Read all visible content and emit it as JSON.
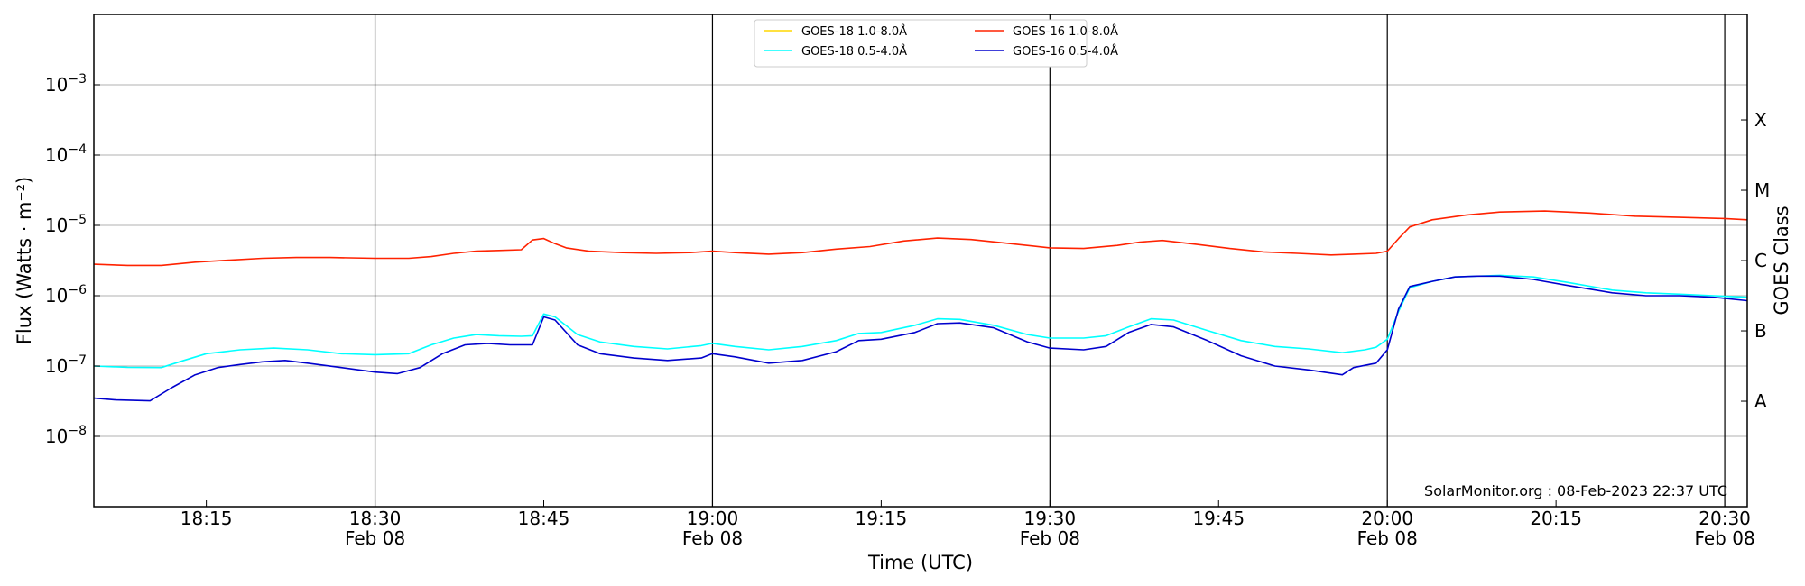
{
  "chart_data": {
    "type": "line",
    "xlabel": "Time (UTC)",
    "ylabel": "Flux (Watts · m⁻²)",
    "y2label": "GOES Class",
    "yscale": "log",
    "ylim": [
      1e-09,
      0.01
    ],
    "xlim": [
      "18:05",
      "20:32"
    ],
    "grid": "horizontal at decades",
    "vertical_lines": [
      "18:30",
      "19:00",
      "19:30",
      "20:00",
      "20:30"
    ],
    "legend_position": "top-center",
    "x_ticks": [
      {
        "time": "18:15",
        "label": "18:15",
        "date": ""
      },
      {
        "time": "18:30",
        "label": "18:30",
        "date": "Feb 08"
      },
      {
        "time": "18:45",
        "label": "18:45",
        "date": ""
      },
      {
        "time": "19:00",
        "label": "19:00",
        "date": "Feb 08"
      },
      {
        "time": "19:15",
        "label": "19:15",
        "date": ""
      },
      {
        "time": "19:30",
        "label": "19:30",
        "date": "Feb 08"
      },
      {
        "time": "19:45",
        "label": "19:45",
        "date": ""
      },
      {
        "time": "20:00",
        "label": "20:00",
        "date": "Feb 08"
      },
      {
        "time": "20:15",
        "label": "20:15",
        "date": ""
      },
      {
        "time": "20:30",
        "label": "20:30",
        "date": "Feb 08"
      }
    ],
    "y_ticks": [
      {
        "value": 1e-08,
        "base": "10",
        "exp": "−8"
      },
      {
        "value": 1e-07,
        "base": "10",
        "exp": "−7"
      },
      {
        "value": 1e-06,
        "base": "10",
        "exp": "−6"
      },
      {
        "value": 1e-05,
        "base": "10",
        "exp": "−5"
      },
      {
        "value": 0.0001,
        "base": "10",
        "exp": "−4"
      },
      {
        "value": 0.001,
        "base": "10",
        "exp": "−3"
      }
    ],
    "goes_classes": [
      {
        "label": "A",
        "value": 3.16e-08
      },
      {
        "label": "B",
        "value": 3.16e-07
      },
      {
        "label": "C",
        "value": 3.16e-06
      },
      {
        "label": "M",
        "value": 3.16e-05
      },
      {
        "label": "X",
        "value": 0.000316
      }
    ],
    "credit": "SolarMonitor.org : 08-Feb-2023 22:37 UTC",
    "series": [
      {
        "name": "GOES-18 1.0-8.0Å",
        "color": "#ffd700",
        "x": [],
        "values": []
      },
      {
        "name": "GOES-18 0.5-4.0Å",
        "color": "#00ffff",
        "x": [
          "18:05",
          "18:08",
          "18:11",
          "18:13",
          "18:15",
          "18:18",
          "18:21",
          "18:24",
          "18:27",
          "18:30",
          "18:33",
          "18:35",
          "18:37",
          "18:39",
          "18:41",
          "18:43",
          "18:44",
          "18:45",
          "18:46",
          "18:48",
          "18:50",
          "18:53",
          "18:56",
          "18:59",
          "19:00",
          "19:02",
          "19:05",
          "19:08",
          "19:11",
          "19:13",
          "19:15",
          "19:18",
          "19:20",
          "19:22",
          "19:25",
          "19:28",
          "19:30",
          "19:33",
          "19:35",
          "19:37",
          "19:39",
          "19:41",
          "19:44",
          "19:47",
          "19:50",
          "19:53",
          "19:56",
          "19:58",
          "19:59",
          "20:00",
          "20:01",
          "20:02",
          "20:04",
          "20:06",
          "20:08",
          "20:10",
          "20:13",
          "20:16",
          "20:20",
          "20:23",
          "20:26",
          "20:29",
          "20:32"
        ],
        "values": [
          1e-07,
          9.6e-08,
          9.5e-08,
          1.2e-07,
          1.5e-07,
          1.7e-07,
          1.8e-07,
          1.7e-07,
          1.5e-07,
          1.45e-07,
          1.5e-07,
          2e-07,
          2.5e-07,
          2.8e-07,
          2.7e-07,
          2.65e-07,
          2.7e-07,
          5.5e-07,
          5e-07,
          2.8e-07,
          2.2e-07,
          1.9e-07,
          1.75e-07,
          1.95e-07,
          2.1e-07,
          1.9e-07,
          1.7e-07,
          1.9e-07,
          2.3e-07,
          2.9e-07,
          3e-07,
          3.8e-07,
          4.7e-07,
          4.6e-07,
          3.8e-07,
          2.8e-07,
          2.5e-07,
          2.5e-07,
          2.7e-07,
          3.6e-07,
          4.7e-07,
          4.5e-07,
          3.2e-07,
          2.3e-07,
          1.9e-07,
          1.75e-07,
          1.55e-07,
          1.7e-07,
          1.85e-07,
          2.4e-07,
          6e-07,
          1.3e-06,
          1.6e-06,
          1.85e-06,
          1.9e-06,
          1.95e-06,
          1.85e-06,
          1.55e-06,
          1.2e-06,
          1.1e-06,
          1.05e-06,
          1e-06,
          9.5e-07
        ]
      },
      {
        "name": "GOES-16 1.0-8.0Å",
        "color": "#ff2200",
        "x": [
          "18:05",
          "18:08",
          "18:11",
          "18:14",
          "18:17",
          "18:20",
          "18:23",
          "18:26",
          "18:30",
          "18:33",
          "18:35",
          "18:37",
          "18:39",
          "18:41",
          "18:43",
          "18:44",
          "18:45",
          "18:46",
          "18:47",
          "18:49",
          "18:52",
          "18:55",
          "18:58",
          "19:00",
          "19:02",
          "19:05",
          "19:08",
          "19:11",
          "19:14",
          "19:17",
          "19:20",
          "19:23",
          "19:26",
          "19:30",
          "19:33",
          "19:36",
          "19:38",
          "19:40",
          "19:43",
          "19:46",
          "19:49",
          "19:52",
          "19:55",
          "19:57",
          "19:59",
          "20:00",
          "20:01",
          "20:02",
          "20:04",
          "20:07",
          "20:10",
          "20:14",
          "20:18",
          "20:22",
          "20:26",
          "20:30",
          "20:32"
        ],
        "values": [
          2.8e-06,
          2.7e-06,
          2.7e-06,
          3e-06,
          3.2e-06,
          3.4e-06,
          3.5e-06,
          3.5e-06,
          3.4e-06,
          3.4e-06,
          3.6e-06,
          4e-06,
          4.3e-06,
          4.4e-06,
          4.5e-06,
          6.2e-06,
          6.5e-06,
          5.5e-06,
          4.8e-06,
          4.3e-06,
          4.1e-06,
          4e-06,
          4.1e-06,
          4.3e-06,
          4.1e-06,
          3.9e-06,
          4.1e-06,
          4.6e-06,
          5e-06,
          6e-06,
          6.6e-06,
          6.3e-06,
          5.6e-06,
          4.8e-06,
          4.7e-06,
          5.2e-06,
          5.8e-06,
          6.1e-06,
          5.4e-06,
          4.7e-06,
          4.2e-06,
          4e-06,
          3.8e-06,
          3.9e-06,
          4e-06,
          4.3e-06,
          6.5e-06,
          9.5e-06,
          1.2e-05,
          1.4e-05,
          1.55e-05,
          1.6e-05,
          1.5e-05,
          1.35e-05,
          1.3e-05,
          1.25e-05,
          1.2e-05
        ]
      },
      {
        "name": "GOES-16 0.5-4.0Å",
        "color": "#0000cd",
        "x": [
          "18:05",
          "18:07",
          "18:10",
          "18:12",
          "18:14",
          "18:16",
          "18:18",
          "18:20",
          "18:22",
          "18:24",
          "18:27",
          "18:30",
          "18:32",
          "18:34",
          "18:36",
          "18:38",
          "18:40",
          "18:42",
          "18:44",
          "18:45",
          "18:46",
          "18:48",
          "18:50",
          "18:53",
          "18:56",
          "18:59",
          "19:00",
          "19:02",
          "19:05",
          "19:08",
          "19:11",
          "19:13",
          "19:15",
          "19:18",
          "19:20",
          "19:22",
          "19:25",
          "19:28",
          "19:30",
          "19:33",
          "19:35",
          "19:37",
          "19:39",
          "19:41",
          "19:44",
          "19:47",
          "19:50",
          "19:53",
          "19:56",
          "19:57",
          "19:59",
          "20:00",
          "20:01",
          "20:02",
          "20:04",
          "20:06",
          "20:08",
          "20:10",
          "20:13",
          "20:16",
          "20:20",
          "20:23",
          "20:26",
          "20:29",
          "20:32"
        ],
        "values": [
          3.5e-08,
          3.3e-08,
          3.2e-08,
          5e-08,
          7.5e-08,
          9.5e-08,
          1.05e-07,
          1.15e-07,
          1.2e-07,
          1.1e-07,
          9.5e-08,
          8.2e-08,
          7.8e-08,
          9.5e-08,
          1.5e-07,
          2e-07,
          2.1e-07,
          2e-07,
          2e-07,
          5e-07,
          4.5e-07,
          2e-07,
          1.5e-07,
          1.3e-07,
          1.2e-07,
          1.3e-07,
          1.5e-07,
          1.35e-07,
          1.1e-07,
          1.2e-07,
          1.6e-07,
          2.3e-07,
          2.4e-07,
          3e-07,
          4e-07,
          4.1e-07,
          3.5e-07,
          2.2e-07,
          1.8e-07,
          1.7e-07,
          1.9e-07,
          3e-07,
          3.9e-07,
          3.6e-07,
          2.3e-07,
          1.4e-07,
          1e-07,
          8.8e-08,
          7.5e-08,
          9.5e-08,
          1.1e-07,
          1.7e-07,
          6.5e-07,
          1.35e-06,
          1.6e-06,
          1.85e-06,
          1.9e-06,
          1.9e-06,
          1.7e-06,
          1.4e-06,
          1.1e-06,
          1e-06,
          1e-06,
          9.5e-07,
          8.5e-07
        ]
      }
    ]
  }
}
